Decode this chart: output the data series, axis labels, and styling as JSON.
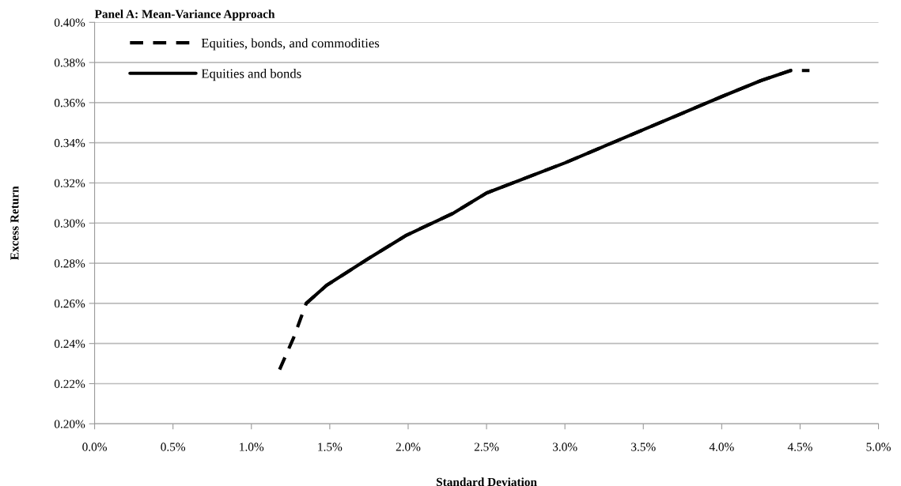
{
  "chart_data": {
    "type": "line",
    "title": "Panel A: Mean-Variance Approach",
    "xlabel": "Standard Deviation",
    "ylabel": "Excess Return",
    "series": [
      {
        "name": "Equities, bonds, and commodities",
        "color": "#000000",
        "line_style": "dashed",
        "x": [
          1.18,
          1.27,
          1.35,
          1.48,
          1.74,
          1.99,
          2.29,
          2.5,
          3.0,
          3.5,
          4.0,
          4.25,
          4.44,
          4.56
        ],
        "values": [
          0.227,
          0.243,
          0.26,
          0.269,
          0.282,
          0.294,
          0.305,
          0.315,
          0.33,
          0.3465,
          0.363,
          0.371,
          0.376,
          0.376
        ]
      },
      {
        "name": "Equities and bonds",
        "color": "#000000",
        "line_style": "solid",
        "x": [
          1.35,
          1.48,
          1.74,
          1.99,
          2.29,
          2.5,
          3.0,
          3.5,
          4.0,
          4.25,
          4.44
        ],
        "values": [
          0.26,
          0.269,
          0.282,
          0.294,
          0.305,
          0.315,
          0.33,
          0.3465,
          0.363,
          0.371,
          0.376
        ]
      }
    ],
    "xlim": [
      0,
      5
    ],
    "ylim": [
      0.2,
      0.4
    ],
    "xticks": [
      {
        "value": 0,
        "label": "0.0%"
      },
      {
        "value": 0.5,
        "label": "0.5%"
      },
      {
        "value": 1,
        "label": "1.0%"
      },
      {
        "value": 1.5,
        "label": "1.5%"
      },
      {
        "value": 2,
        "label": "2.0%"
      },
      {
        "value": 2.5,
        "label": "2.5%"
      },
      {
        "value": 3,
        "label": "3.0%"
      },
      {
        "value": 3.5,
        "label": "3.5%"
      },
      {
        "value": 4,
        "label": "4.0%"
      },
      {
        "value": 4.5,
        "label": "4.5%"
      },
      {
        "value": 5,
        "label": "5.0%"
      }
    ],
    "yticks": [
      {
        "value": 0.2,
        "label": "0.20%"
      },
      {
        "value": 0.22,
        "label": "0.22%"
      },
      {
        "value": 0.24,
        "label": "0.24%"
      },
      {
        "value": 0.26,
        "label": "0.26%"
      },
      {
        "value": 0.28,
        "label": "0.28%"
      },
      {
        "value": 0.3,
        "label": "0.30%"
      },
      {
        "value": 0.32,
        "label": "0.32%"
      },
      {
        "value": 0.34,
        "label": "0.34%"
      },
      {
        "value": 0.36,
        "label": "0.36%"
      },
      {
        "value": 0.38,
        "label": "0.38%"
      },
      {
        "value": 0.4,
        "label": "0.40%"
      }
    ],
    "grid": "y",
    "legend": "top left",
    "marker": "none"
  }
}
